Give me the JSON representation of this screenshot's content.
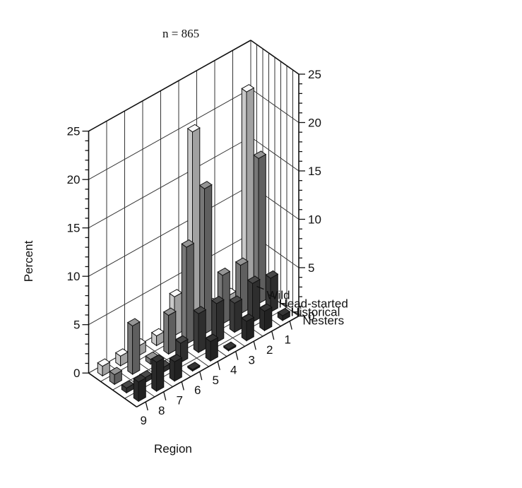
{
  "chart_data": {
    "type": "bar",
    "annotation": "n = 865",
    "ylabel": "Percent",
    "xlabel": "Region",
    "ylim": [
      0,
      25
    ],
    "yticks": [
      "0",
      "5",
      "10",
      "15",
      "20",
      "25"
    ],
    "categories": [
      "9",
      "8",
      "7",
      "6",
      "5",
      "4",
      "3",
      "2",
      "1"
    ],
    "series": [
      {
        "name": "Nesters",
        "values": [
          2.0,
          3.0,
          2.0,
          0,
          2.0,
          0,
          2.0,
          2.0,
          0.5
        ]
      },
      {
        "name": "Historical",
        "values": [
          0.5,
          0.5,
          0.5,
          2.0,
          4.0,
          4.0,
          3.0,
          4.0,
          3.5
        ]
      },
      {
        "name": "Head-started",
        "values": [
          1.0,
          5.0,
          0.5,
          4.0,
          10.0,
          15.0,
          5.0,
          5.0,
          15.0
        ]
      },
      {
        "name": "Wild",
        "values": [
          1.0,
          1.0,
          1.0,
          1.0,
          4.0,
          20.0,
          1.0,
          1.0,
          21.0
        ]
      }
    ],
    "colors": {
      "Nesters": "#2a2a2a",
      "Historical": "#3a3a3a",
      "Head-started": "#777777",
      "Wild": "#c9c9c9"
    },
    "grid": true,
    "legend": "none"
  }
}
